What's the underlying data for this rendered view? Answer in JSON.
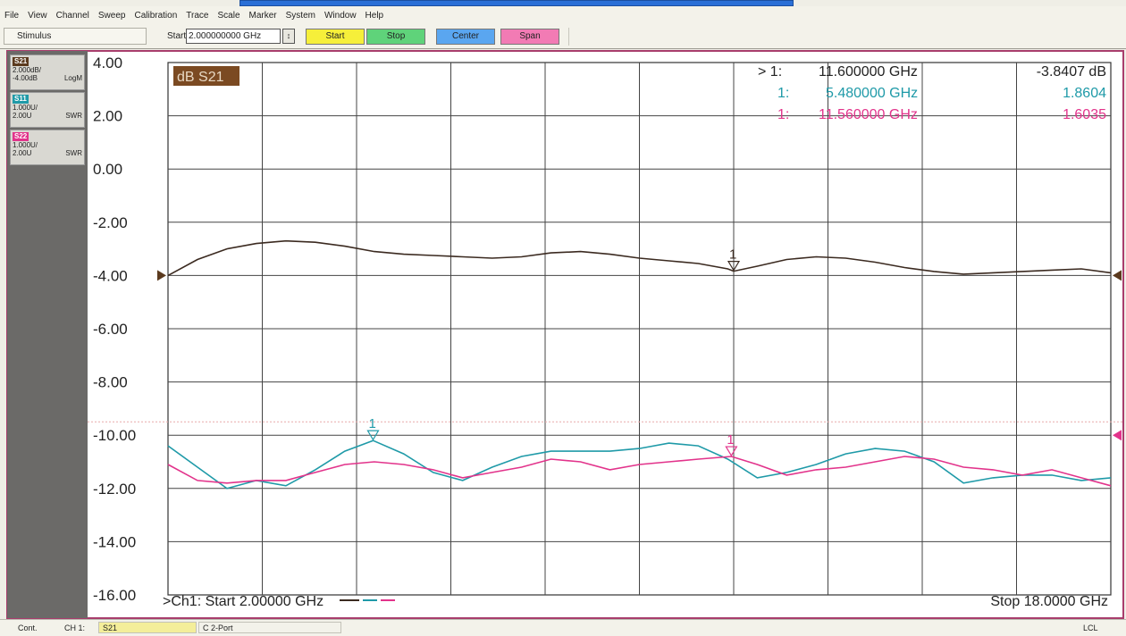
{
  "menu": [
    "File",
    "View",
    "Channel",
    "Sweep",
    "Calibration",
    "Trace",
    "Scale",
    "Marker",
    "System",
    "Window",
    "Help"
  ],
  "toolbar": {
    "stimulus_label": "Stimulus",
    "start_label": "Start",
    "start_value": "2.000000000 GHz",
    "buttons": {
      "start": "Start",
      "stop": "Stop",
      "center": "Center",
      "span": "Span"
    },
    "button_colors": {
      "start": "#f6ef3a",
      "stop": "#5fd37a",
      "center": "#5aa6f0",
      "span": "#f27bb4"
    }
  },
  "traces_panel": [
    {
      "tag": "S21",
      "color": "#5b3a1e",
      "line1": "2.000dB/",
      "line2a": "-4.00dB",
      "line2b": "LogM"
    },
    {
      "tag": "S11",
      "color": "#1f9aa8",
      "line1": "1.000U/",
      "line2a": "2.00U",
      "line2b": "SWR"
    },
    {
      "tag": "S22",
      "color": "#e2338b",
      "line1": "1.000U/",
      "line2a": "2.00U",
      "line2b": "SWR"
    }
  ],
  "plot": {
    "active_trace_label": "dB S21",
    "active_trace_label_bg": "#7b4a22",
    "y_ticks": [
      "4.00",
      "2.00",
      "0.00",
      "-2.00",
      "-4.00",
      "-6.00",
      "-8.00",
      "-10.00",
      "-12.00",
      "-14.00",
      "-16.00"
    ],
    "markers": [
      {
        "prefix": "> 1:",
        "freq": "11.600000 GHz",
        "value": "-3.8407 dB",
        "color": "#222222"
      },
      {
        "prefix": "1:",
        "freq": "5.480000 GHz",
        "value": "1.8604",
        "color": "#1f9aa8"
      },
      {
        "prefix": "1:",
        "freq": "11.560000 GHz",
        "value": "1.6035",
        "color": "#e2338b"
      }
    ],
    "footer_start": ">Ch1: Start  2.00000 GHz",
    "footer_stop": "Stop  18.0000 GHz",
    "marker_glyph": "1"
  },
  "chart_data": {
    "type": "line",
    "x_unit": "GHz",
    "xlim": [
      2,
      18
    ],
    "ylim": [
      -16,
      4
    ],
    "grid": true,
    "series": [
      {
        "name": "S21",
        "color": "#3b2a20",
        "x": [
          2.0,
          2.5,
          3.0,
          3.5,
          4.0,
          4.5,
          5.0,
          5.5,
          6.0,
          6.5,
          7.0,
          7.5,
          8.0,
          8.5,
          9.0,
          9.5,
          10.0,
          10.5,
          11.0,
          11.5,
          11.6,
          12.0,
          12.5,
          13.0,
          13.5,
          14.0,
          14.5,
          15.0,
          15.5,
          16.0,
          16.5,
          17.0,
          17.5,
          18.0
        ],
        "y": [
          -4.0,
          -3.4,
          -3.0,
          -2.8,
          -2.7,
          -2.75,
          -2.9,
          -3.1,
          -3.2,
          -3.25,
          -3.3,
          -3.35,
          -3.3,
          -3.15,
          -3.1,
          -3.2,
          -3.35,
          -3.45,
          -3.55,
          -3.75,
          -3.84,
          -3.65,
          -3.4,
          -3.3,
          -3.35,
          -3.5,
          -3.7,
          -3.85,
          -3.95,
          -3.9,
          -3.85,
          -3.8,
          -3.75,
          -3.9
        ]
      },
      {
        "name": "S11",
        "color": "#1f9aa8",
        "x": [
          2.0,
          2.5,
          3.0,
          3.5,
          4.0,
          4.5,
          5.0,
          5.48,
          6.0,
          6.5,
          7.0,
          7.5,
          8.0,
          8.5,
          9.0,
          9.5,
          10.0,
          10.5,
          11.0,
          11.5,
          12.0,
          12.5,
          13.0,
          13.5,
          14.0,
          14.5,
          15.0,
          15.5,
          16.0,
          16.5,
          17.0,
          17.5,
          18.0
        ],
        "y": [
          -10.4,
          -11.2,
          -12.0,
          -11.7,
          -11.9,
          -11.3,
          -10.6,
          -10.2,
          -10.7,
          -11.4,
          -11.7,
          -11.2,
          -10.8,
          -10.6,
          -10.6,
          -10.6,
          -10.5,
          -10.3,
          -10.4,
          -10.9,
          -11.6,
          -11.4,
          -11.1,
          -10.7,
          -10.5,
          -10.6,
          -11.0,
          -11.8,
          -11.6,
          -11.5,
          -11.5,
          -11.7,
          -11.6
        ]
      },
      {
        "name": "S22",
        "color": "#e2338b",
        "x": [
          2.0,
          2.5,
          3.0,
          3.5,
          4.0,
          4.5,
          5.0,
          5.5,
          6.0,
          6.5,
          7.0,
          7.5,
          8.0,
          8.5,
          9.0,
          9.5,
          10.0,
          10.5,
          11.0,
          11.56,
          12.0,
          12.5,
          13.0,
          13.5,
          14.0,
          14.5,
          15.0,
          15.5,
          16.0,
          16.5,
          17.0,
          17.5,
          18.0
        ],
        "y": [
          -11.1,
          -11.7,
          -11.8,
          -11.7,
          -11.7,
          -11.4,
          -11.1,
          -11.0,
          -11.1,
          -11.3,
          -11.6,
          -11.4,
          -11.2,
          -10.9,
          -11.0,
          -11.3,
          -11.1,
          -11.0,
          -10.9,
          -10.8,
          -11.1,
          -11.5,
          -11.3,
          -11.2,
          -11.0,
          -10.8,
          -10.9,
          -11.2,
          -11.3,
          -11.5,
          -11.3,
          -11.6,
          -11.9
        ]
      }
    ],
    "markers": [
      {
        "series": "S21",
        "x": 11.6,
        "y": -3.84
      },
      {
        "series": "S11",
        "x": 5.48,
        "y": -10.2
      },
      {
        "series": "S22",
        "x": 11.56,
        "y": -10.8
      }
    ],
    "reference_arrows": [
      {
        "series": "S21",
        "y": -4.0,
        "color": "#5b3a1e"
      },
      {
        "series": "S22",
        "y": -10.0,
        "color": "#e2338b"
      }
    ]
  },
  "status": {
    "mode": "Cont.",
    "channel": "CH 1:",
    "measurement": "S21",
    "cal": "C  2-Port",
    "remote": "LCL"
  }
}
